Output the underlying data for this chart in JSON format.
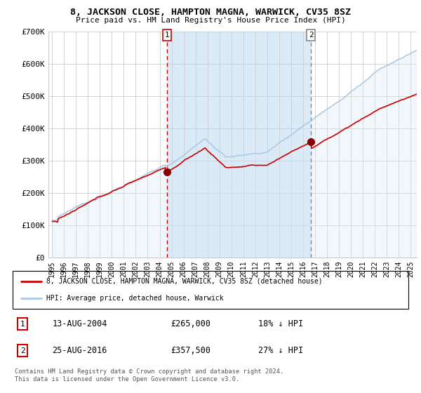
{
  "title": "8, JACKSON CLOSE, HAMPTON MAGNA, WARWICK, CV35 8SZ",
  "subtitle": "Price paid vs. HM Land Registry's House Price Index (HPI)",
  "legend_line1": "8, JACKSON CLOSE, HAMPTON MAGNA, WARWICK, CV35 8SZ (detached house)",
  "legend_line2": "HPI: Average price, detached house, Warwick",
  "annotation1_label": "1",
  "annotation1_date": "13-AUG-2004",
  "annotation1_price": "£265,000",
  "annotation1_hpi": "18% ↓ HPI",
  "annotation2_label": "2",
  "annotation2_date": "25-AUG-2016",
  "annotation2_price": "£357,500",
  "annotation2_hpi": "27% ↓ HPI",
  "footer": "Contains HM Land Registry data © Crown copyright and database right 2024.\nThis data is licensed under the Open Government Licence v3.0.",
  "sale1_x": 2004.625,
  "sale1_y": 265000,
  "sale2_x": 2016.646,
  "sale2_y": 357500,
  "vline1_x": 2004.625,
  "vline2_x": 2016.646,
  "hpi_color": "#a8c8e8",
  "price_color": "#cc0000",
  "dot_color": "#8b0000",
  "shade_color": "#daeaf7",
  "background_color": "#ffffff",
  "grid_color": "#cccccc",
  "ylim": [
    0,
    700000
  ],
  "xlim_start": 1994.7,
  "xlim_end": 2025.5,
  "yticks": [
    0,
    100000,
    200000,
    300000,
    400000,
    500000,
    600000,
    700000
  ],
  "ytick_labels": [
    "£0",
    "£100K",
    "£200K",
    "£300K",
    "£400K",
    "£500K",
    "£600K",
    "£700K"
  ],
  "xtick_years": [
    1995,
    1996,
    1997,
    1998,
    1999,
    2000,
    2001,
    2002,
    2003,
    2004,
    2005,
    2006,
    2007,
    2008,
    2009,
    2010,
    2011,
    2012,
    2013,
    2014,
    2015,
    2016,
    2017,
    2018,
    2019,
    2020,
    2021,
    2022,
    2023,
    2024,
    2025
  ]
}
